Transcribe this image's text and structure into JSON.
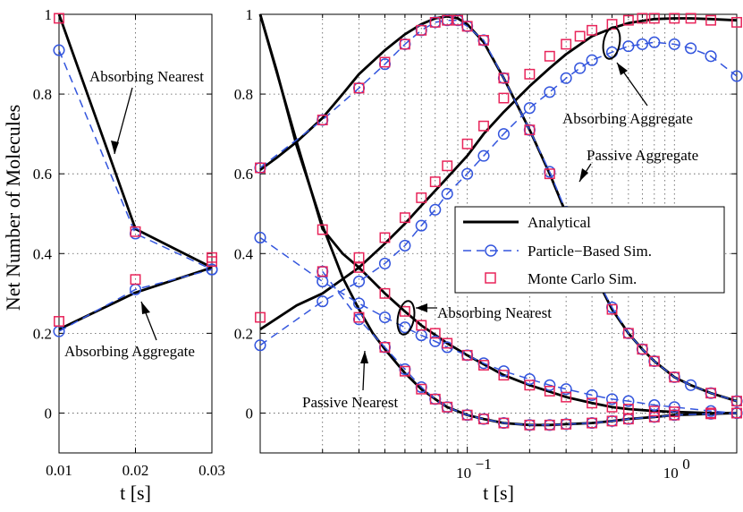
{
  "ylabel": "Net Number of  Molecules",
  "chart_data": [
    {
      "type": "line",
      "panel": "left",
      "xscale": "linear",
      "xlim": [
        0.01,
        0.03
      ],
      "ylim": [
        -0.1,
        1.0
      ],
      "xlabel": "t [s]",
      "ylabel": "Net Number of  Molecules",
      "xticks": [
        0.01,
        0.02,
        0.03
      ],
      "xtick_labels": [
        "0.01",
        "0.02",
        "0.03"
      ],
      "yticks": [
        0,
        0.2,
        0.4,
        0.6,
        0.8,
        1
      ],
      "ytick_labels": [
        "0",
        "0.2",
        "0.4",
        "0.6",
        "0.8",
        "1"
      ],
      "grid": true,
      "series": [
        {
          "name": "Analytical",
          "curve": "Absorbing Nearest",
          "style": "solid",
          "x": [
            0.01,
            0.02,
            0.03
          ],
          "y": [
            1.0,
            0.462,
            0.365
          ]
        },
        {
          "name": "Analytical",
          "curve": "Absorbing Aggregate",
          "style": "solid",
          "x": [
            0.01,
            0.02,
            0.03
          ],
          "y": [
            0.21,
            0.302,
            0.365
          ]
        },
        {
          "name": "Particle-Based Sim.",
          "curve": "Absorbing Nearest",
          "style": "dashed-circle",
          "x": [
            0.01,
            0.02,
            0.03
          ],
          "y": [
            0.91,
            0.45,
            0.36
          ]
        },
        {
          "name": "Particle-Based Sim.",
          "curve": "Absorbing Aggregate",
          "style": "dashed-circle",
          "x": [
            0.01,
            0.02,
            0.03
          ],
          "y": [
            0.205,
            0.31,
            0.36
          ]
        },
        {
          "name": "Monte Carlo Sim.",
          "curve": "Absorbing Nearest",
          "style": "square",
          "x": [
            0.01,
            0.02,
            0.03
          ],
          "y": [
            0.99,
            0.455,
            0.38
          ]
        },
        {
          "name": "Monte Carlo Sim.",
          "curve": "Absorbing Aggregate",
          "style": "square",
          "x": [
            0.01,
            0.02,
            0.03
          ],
          "y": [
            0.23,
            0.335,
            0.39
          ]
        }
      ],
      "annotations": [
        {
          "text": "Absorbing Nearest"
        },
        {
          "text": "Absorbing Aggregate"
        }
      ]
    },
    {
      "type": "line",
      "panel": "right",
      "xscale": "log",
      "xlim": [
        0.01,
        2.0
      ],
      "ylim": [
        -0.1,
        1.0
      ],
      "xlabel": "t [s]",
      "yticks": [
        0,
        0.2,
        0.4,
        0.6,
        0.8,
        1
      ],
      "ytick_labels": [
        "0",
        "0.2",
        "0.4",
        "0.6",
        "0.8",
        "1"
      ],
      "xtick_labels": [
        {
          "base": "10",
          "exp": "−1",
          "value": 0.1
        },
        {
          "base": "10",
          "exp": "0",
          "value": 1.0
        }
      ],
      "grid": true,
      "series": [
        {
          "name": "Analytical",
          "curve": "Passive Aggregate",
          "style": "solid",
          "x": [
            0.01,
            0.012,
            0.015,
            0.02,
            0.025,
            0.03,
            0.04,
            0.05,
            0.06,
            0.07,
            0.08,
            0.09,
            0.1,
            0.12,
            0.15,
            0.2,
            0.25,
            0.3,
            0.35,
            0.4,
            0.5,
            0.6,
            0.7,
            0.8,
            1.0,
            1.2,
            1.5,
            2.0
          ],
          "y": [
            0.61,
            0.64,
            0.68,
            0.74,
            0.8,
            0.85,
            0.91,
            0.95,
            0.975,
            0.99,
            0.995,
            0.99,
            0.975,
            0.93,
            0.84,
            0.71,
            0.6,
            0.5,
            0.42,
            0.36,
            0.26,
            0.2,
            0.16,
            0.13,
            0.09,
            0.07,
            0.05,
            0.03
          ]
        },
        {
          "name": "Analytical",
          "curve": "Absorbing Aggregate",
          "style": "solid",
          "x": [
            0.01,
            0.015,
            0.02,
            0.03,
            0.04,
            0.05,
            0.06,
            0.08,
            0.1,
            0.12,
            0.15,
            0.2,
            0.25,
            0.3,
            0.4,
            0.5,
            0.6,
            0.8,
            1.0,
            1.2,
            1.5,
            2.0
          ],
          "y": [
            0.21,
            0.27,
            0.3,
            0.365,
            0.425,
            0.475,
            0.52,
            0.59,
            0.645,
            0.7,
            0.755,
            0.82,
            0.865,
            0.9,
            0.945,
            0.965,
            0.978,
            0.988,
            0.99,
            0.99,
            0.988,
            0.985
          ]
        },
        {
          "name": "Analytical",
          "curve": "Absorbing Nearest",
          "style": "solid",
          "x": [
            0.01,
            0.015,
            0.02,
            0.025,
            0.03,
            0.04,
            0.05,
            0.06,
            0.08,
            0.1,
            0.15,
            0.2,
            0.3,
            0.4,
            0.5,
            0.6,
            0.8,
            1.0,
            1.5,
            2.0
          ],
          "y": [
            1.0,
            0.68,
            0.462,
            0.4,
            0.365,
            0.3,
            0.255,
            0.22,
            0.175,
            0.145,
            0.095,
            0.07,
            0.04,
            0.025,
            0.015,
            0.01,
            0.005,
            0.003,
            0.0,
            0.0
          ]
        },
        {
          "name": "Analytical",
          "curve": "Passive Nearest",
          "style": "solid",
          "x": [
            0.01,
            0.012,
            0.015,
            0.02,
            0.025,
            0.03,
            0.035,
            0.04,
            0.05,
            0.06,
            0.07,
            0.08,
            0.1,
            0.12,
            0.15,
            0.2,
            0.25,
            0.3,
            0.4,
            0.5,
            0.6,
            0.8,
            1.0,
            1.5,
            2.0
          ],
          "y": [
            1.0,
            0.86,
            0.67,
            0.47,
            0.34,
            0.26,
            0.2,
            0.16,
            0.1,
            0.06,
            0.035,
            0.015,
            -0.005,
            -0.015,
            -0.025,
            -0.03,
            -0.03,
            -0.028,
            -0.025,
            -0.02,
            -0.015,
            -0.01,
            -0.005,
            -0.002,
            0.0
          ]
        },
        {
          "name": "Particle-Based Sim.",
          "curve": "Passive Aggregate",
          "style": "dashed-circle",
          "x": [
            0.01,
            0.02,
            0.03,
            0.04,
            0.05,
            0.06,
            0.07,
            0.08,
            0.09,
            0.1,
            0.12,
            0.15,
            0.2,
            0.25,
            0.3,
            0.35,
            0.4,
            0.5,
            0.6,
            0.7,
            0.8,
            1.0,
            1.2,
            1.5,
            2.0
          ],
          "y": [
            0.615,
            0.735,
            0.815,
            0.875,
            0.925,
            0.96,
            0.98,
            0.985,
            0.985,
            0.97,
            0.935,
            0.84,
            0.71,
            0.605,
            0.505,
            0.425,
            0.36,
            0.265,
            0.2,
            0.16,
            0.13,
            0.09,
            0.07,
            0.05,
            0.03
          ]
        },
        {
          "name": "Particle-Based Sim.",
          "curve": "Absorbing Aggregate",
          "style": "dashed-circle",
          "x": [
            0.01,
            0.02,
            0.03,
            0.04,
            0.05,
            0.06,
            0.07,
            0.08,
            0.1,
            0.12,
            0.15,
            0.2,
            0.25,
            0.3,
            0.35,
            0.4,
            0.5,
            0.6,
            0.7,
            0.8,
            1.0,
            1.2,
            1.5,
            2.0
          ],
          "y": [
            0.17,
            0.28,
            0.33,
            0.375,
            0.42,
            0.47,
            0.51,
            0.55,
            0.6,
            0.645,
            0.7,
            0.765,
            0.805,
            0.84,
            0.865,
            0.885,
            0.905,
            0.92,
            0.925,
            0.93,
            0.925,
            0.915,
            0.895,
            0.845
          ]
        },
        {
          "name": "Particle-Based Sim.",
          "curve": "Absorbing Nearest",
          "style": "dashed-circle",
          "x": [
            0.01,
            0.02,
            0.03,
            0.04,
            0.05,
            0.06,
            0.07,
            0.08,
            0.1,
            0.12,
            0.15,
            0.2,
            0.25,
            0.3,
            0.4,
            0.5,
            0.6,
            0.8,
            1.0,
            1.5,
            2.0
          ],
          "y": [
            0.44,
            0.33,
            0.275,
            0.24,
            0.215,
            0.195,
            0.18,
            0.165,
            0.145,
            0.125,
            0.105,
            0.085,
            0.07,
            0.06,
            0.045,
            0.035,
            0.03,
            0.02,
            0.015,
            0.005,
            0.0
          ]
        },
        {
          "name": "Particle-Based Sim.",
          "curve": "Passive Nearest",
          "style": "dashed-circle",
          "x": [
            0.02,
            0.03,
            0.04,
            0.05,
            0.06,
            0.07,
            0.08,
            0.1,
            0.12,
            0.15,
            0.2,
            0.25,
            0.3,
            0.4,
            0.5,
            0.6,
            0.8,
            1.0,
            1.5,
            2.0
          ],
          "y": [
            0.355,
            0.235,
            0.165,
            0.11,
            0.065,
            0.035,
            0.015,
            -0.005,
            -0.015,
            -0.025,
            -0.03,
            -0.03,
            -0.028,
            -0.025,
            -0.02,
            -0.015,
            -0.01,
            -0.005,
            -0.002,
            0.0
          ]
        },
        {
          "name": "Monte Carlo Sim.",
          "curve": "Passive Aggregate",
          "style": "square",
          "x": [
            0.01,
            0.02,
            0.03,
            0.04,
            0.05,
            0.06,
            0.07,
            0.08,
            0.09,
            0.1,
            0.12,
            0.15,
            0.2,
            0.25,
            0.3,
            0.35,
            0.4,
            0.5,
            0.6,
            0.7,
            0.8,
            1.0,
            1.5,
            2.0
          ],
          "y": [
            0.615,
            0.735,
            0.815,
            0.88,
            0.925,
            0.96,
            0.98,
            0.985,
            0.985,
            0.97,
            0.935,
            0.84,
            0.71,
            0.6,
            0.5,
            0.42,
            0.36,
            0.26,
            0.2,
            0.16,
            0.13,
            0.09,
            0.05,
            0.03
          ]
        },
        {
          "name": "Monte Carlo Sim.",
          "curve": "Absorbing Aggregate",
          "style": "square",
          "x": [
            0.01,
            0.02,
            0.03,
            0.04,
            0.05,
            0.06,
            0.07,
            0.08,
            0.1,
            0.12,
            0.15,
            0.2,
            0.25,
            0.3,
            0.35,
            0.4,
            0.5,
            0.6,
            0.7,
            0.8,
            1.0,
            1.2,
            1.5,
            2.0
          ],
          "y": [
            0.24,
            0.355,
            0.39,
            0.44,
            0.49,
            0.54,
            0.58,
            0.62,
            0.675,
            0.72,
            0.79,
            0.85,
            0.895,
            0.925,
            0.945,
            0.96,
            0.975,
            0.985,
            0.99,
            0.99,
            0.99,
            0.99,
            0.985,
            0.98
          ]
        },
        {
          "name": "Monte Carlo Sim.",
          "curve": "Absorbing Nearest",
          "style": "square",
          "x": [
            0.02,
            0.03,
            0.04,
            0.05,
            0.06,
            0.07,
            0.08,
            0.1,
            0.12,
            0.15,
            0.2,
            0.25,
            0.3,
            0.4,
            0.5,
            0.6,
            0.8,
            1.0,
            1.5,
            2.0
          ],
          "y": [
            0.46,
            0.365,
            0.3,
            0.255,
            0.22,
            0.2,
            0.175,
            0.145,
            0.12,
            0.095,
            0.07,
            0.055,
            0.04,
            0.025,
            0.015,
            0.01,
            0.005,
            0.003,
            0.0,
            0.0
          ]
        },
        {
          "name": "Monte Carlo Sim.",
          "curve": "Passive Nearest",
          "style": "square",
          "x": [
            0.03,
            0.04,
            0.05,
            0.06,
            0.07,
            0.08,
            0.1,
            0.12,
            0.15,
            0.2,
            0.25,
            0.3,
            0.4,
            0.5,
            0.6,
            0.8,
            1.0,
            1.5,
            2.0
          ],
          "y": [
            0.24,
            0.165,
            0.105,
            0.06,
            0.035,
            0.015,
            -0.005,
            -0.015,
            -0.025,
            -0.03,
            -0.03,
            -0.028,
            -0.025,
            -0.02,
            -0.015,
            -0.01,
            -0.005,
            -0.002,
            0.0
          ]
        }
      ],
      "legend": {
        "position": "center-right",
        "entries": [
          "Analytical",
          "Particle−Based Sim.",
          "Monte Carlo Sim."
        ]
      },
      "annotations": [
        {
          "text": "Absorbing Aggregate"
        },
        {
          "text": "Passive Aggregate"
        },
        {
          "text": "Absorbing Nearest"
        },
        {
          "text": "Passive Nearest"
        }
      ]
    }
  ],
  "colors": {
    "analytical": "#000000",
    "particle": "#3355dd",
    "montecarlo": "#e8245a",
    "grid": "#555555"
  }
}
